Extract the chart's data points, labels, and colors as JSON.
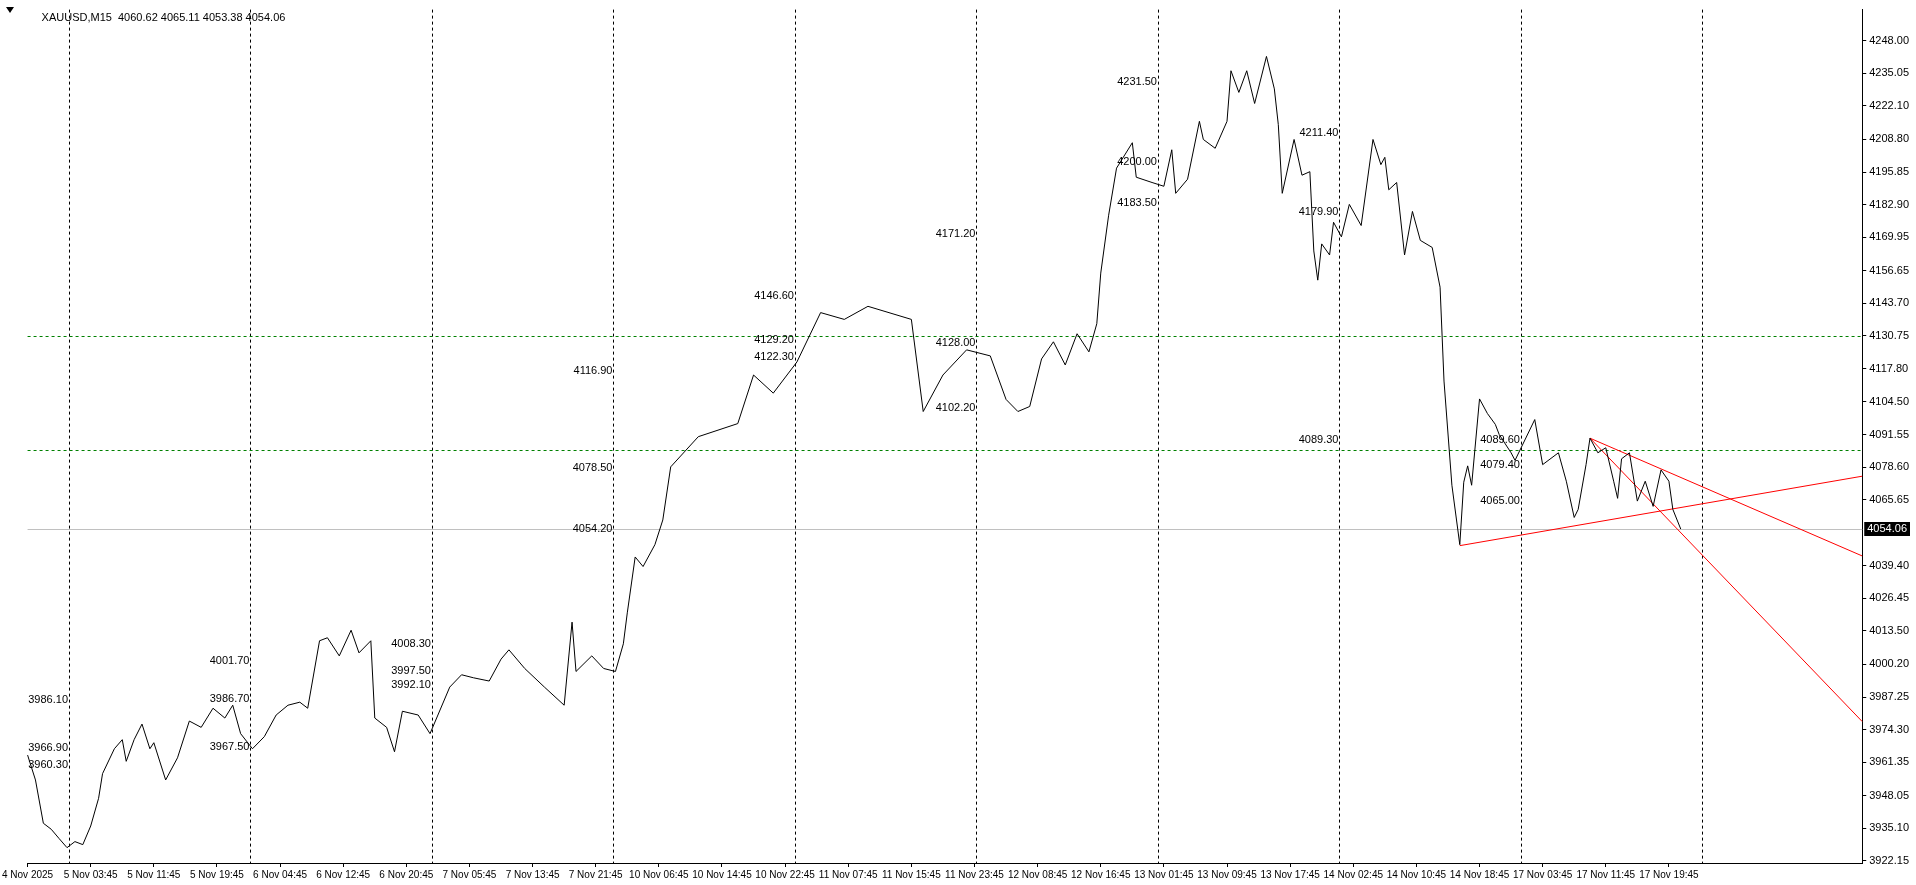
{
  "chart_data": {
    "type": "line",
    "title": "XAUUSD,M15  4060.62 4065.11 4053.38 4054.06",
    "categories": [
      "4 Nov 2025",
      null,
      null,
      null,
      null,
      null,
      null,
      null,
      null,
      null,
      null,
      null,
      null,
      null,
      null,
      null,
      "5 Nov 03:45",
      null,
      null,
      null,
      null,
      null,
      null,
      null,
      null,
      null,
      null,
      null,
      null,
      null,
      null,
      null,
      "5 Nov 11:45",
      null,
      null,
      null,
      null,
      null,
      null,
      null,
      null,
      null,
      null,
      null,
      null,
      null,
      null,
      null,
      "5 Nov 19:45",
      null,
      null,
      null,
      null,
      null,
      null,
      null,
      null,
      null,
      null,
      null,
      null,
      null,
      null,
      null,
      "6 Nov 04:45",
      null,
      null,
      null,
      null,
      null,
      null,
      null,
      null,
      null,
      null,
      null,
      null,
      null,
      null,
      null,
      "6 Nov 12:45",
      null,
      null,
      null,
      null,
      null,
      null,
      null,
      null,
      null,
      null,
      null,
      null,
      null,
      null,
      null,
      "6 Nov 20:45",
      null,
      null,
      null,
      null,
      null,
      null,
      null,
      null,
      null,
      null,
      null,
      null,
      null,
      null,
      null,
      "7 Nov 05:45",
      null,
      null,
      null,
      null,
      null,
      null,
      null,
      null,
      null,
      null,
      null,
      null,
      null,
      null,
      null,
      "7 Nov 13:45",
      null,
      null,
      null,
      null,
      null,
      null,
      null,
      null,
      null,
      null,
      null,
      null,
      null,
      null,
      null,
      "7 Nov 21:45",
      null,
      null,
      null,
      null,
      null,
      null,
      null,
      null,
      null,
      null,
      null,
      null,
      null,
      null,
      null,
      "10 Nov 06:45",
      null,
      null,
      null,
      null,
      null,
      null,
      null,
      null,
      null,
      null,
      null,
      null,
      null,
      null,
      null,
      "10 Nov 14:45",
      null,
      null,
      null,
      null,
      null,
      null,
      null,
      null,
      null,
      null,
      null,
      null,
      null,
      null,
      null,
      "10 Nov 22:45",
      null,
      null,
      null,
      null,
      null,
      null,
      null,
      null,
      null,
      null,
      null,
      null,
      null,
      null,
      null,
      "11 Nov 07:45",
      null,
      null,
      null,
      null,
      null,
      null,
      null,
      null,
      null,
      null,
      null,
      null,
      null,
      null,
      null,
      "11 Nov 15:45",
      null,
      null,
      null,
      null,
      null,
      null,
      null,
      null,
      null,
      null,
      null,
      null,
      null,
      null,
      null,
      "11 Nov 23:45",
      null,
      null,
      null,
      null,
      null,
      null,
      null,
      null,
      null,
      null,
      null,
      null,
      null,
      null,
      null,
      "12 Nov 08:45",
      null,
      null,
      null,
      null,
      null,
      null,
      null,
      null,
      null,
      null,
      null,
      null,
      null,
      null,
      null,
      "12 Nov 16:45",
      null,
      null,
      null,
      null,
      null,
      null,
      null,
      null,
      null,
      null,
      null,
      null,
      null,
      null,
      null,
      "13 Nov 01:45",
      null,
      null,
      null,
      null,
      null,
      null,
      null,
      null,
      null,
      null,
      null,
      null,
      null,
      null,
      null,
      "13 Nov 09:45",
      null,
      null,
      null,
      null,
      null,
      null,
      null,
      null,
      null,
      null,
      null,
      null,
      null,
      null,
      null,
      "13 Nov 17:45",
      null,
      null,
      null,
      null,
      null,
      null,
      null,
      null,
      null,
      null,
      null,
      null,
      null,
      null,
      null,
      "14 Nov 02:45",
      null,
      null,
      null,
      null,
      null,
      null,
      null,
      null,
      null,
      null,
      null,
      null,
      null,
      null,
      null,
      "14 Nov 10:45",
      null,
      null,
      null,
      null,
      null,
      null,
      null,
      null,
      null,
      null,
      null,
      null,
      null,
      null,
      null,
      "14 Nov 18:45",
      null,
      null,
      null,
      null,
      null,
      null,
      null,
      null,
      null,
      null,
      null,
      null,
      null,
      null,
      null,
      "17 Nov 03:45",
      null,
      null,
      null,
      null,
      null,
      null,
      null,
      null,
      null,
      null,
      null,
      null,
      null,
      null,
      null,
      "17 Nov 11:45",
      null,
      null,
      null,
      null,
      null,
      null,
      null,
      null,
      null,
      null,
      null,
      null,
      null,
      null,
      null,
      "17 Nov 19:45",
      null,
      null,
      null,
      null,
      null,
      null,
      null,
      null,
      null,
      null,
      null,
      null,
      null,
      null,
      null,
      null,
      null,
      null,
      null,
      null,
      null,
      null,
      null,
      null,
      null,
      null,
      null,
      null,
      null,
      null,
      null,
      null,
      null,
      null,
      null,
      null,
      null,
      null,
      null,
      null,
      null,
      null,
      null,
      null,
      null,
      null,
      null,
      null,
      null
    ],
    "series": [
      {
        "color": "#000000",
        "values": [
          3964.2,
          null,
          3954.3,
          null,
          3937.1,
          null,
          3934.7,
          null,
          3931,
          null,
          3927.4,
          null,
          3929.8,
          null,
          3928.6,
          null,
          3936,
          null,
          3947,
          3956.8,
          null,
          null,
          3966.7,
          null,
          3970.3,
          3961.7,
          null,
          3970.3,
          null,
          3976.5,
          null,
          3966.7,
          3969.1,
          null,
          null,
          3954.3,
          null,
          null,
          3963.1,
          null,
          null,
          3977.7,
          null,
          null,
          3975.2,
          null,
          null,
          3982.8,
          null,
          null,
          3978.9,
          null,
          3984,
          null,
          3972.7,
          null,
          null,
          3966.7,
          null,
          null,
          3971.5,
          null,
          null,
          3980.1,
          null,
          null,
          3984,
          null,
          null,
          3985.2,
          null,
          3982.8,
          null,
          null,
          4009.6,
          null,
          4010.8,
          null,
          null,
          4003.6,
          null,
          null,
          4013.8,
          null,
          4004.8,
          null,
          null,
          4009.6,
          3978.9,
          null,
          null,
          3975.2,
          null,
          3965.5,
          null,
          3981.6,
          null,
          null,
          null,
          3980.1,
          null,
          null,
          3972.7,
          null,
          3980.1,
          null,
          null,
          3991.2,
          null,
          null,
          3996.1,
          null,
          null,
          3994.9,
          null,
          null,
          null,
          3993.6,
          null,
          null,
          4002.3,
          null,
          4006,
          null,
          null,
          null,
          3998.6,
          null,
          null,
          null,
          null,
          3991.2,
          null,
          null,
          null,
          null,
          3984,
          null,
          4017,
          3997.4,
          null,
          null,
          null,
          4003.6,
          null,
          null,
          3998.6,
          null,
          null,
          3997.4,
          null,
          4008.4,
          4020.7,
          null,
          4042.9,
          null,
          4039.1,
          null,
          null,
          4047.8,
          null,
          4057.6,
          null,
          4078.7,
          null,
          null,
          null,
          null,
          null,
          null,
          4090.7,
          null,
          null,
          null,
          null,
          null,
          null,
          null,
          null,
          null,
          4095.9,
          null,
          null,
          null,
          4115.2,
          null,
          null,
          null,
          null,
          4108,
          null,
          null,
          null,
          null,
          null,
          4120.4,
          null,
          null,
          null,
          null,
          null,
          4140,
          null,
          null,
          null,
          null,
          null,
          4137.3,
          null,
          null,
          null,
          null,
          null,
          4142.5,
          null,
          null,
          null,
          null,
          null,
          null,
          null,
          null,
          null,
          null,
          4137.3,
          null,
          null,
          4100.7,
          null,
          null,
          null,
          null,
          4115.2,
          null,
          null,
          null,
          null,
          null,
          4125.2,
          null,
          null,
          null,
          null,
          null,
          4122.8,
          null,
          null,
          null,
          4105.5,
          null,
          null,
          4100.7,
          null,
          null,
          4102.7,
          null,
          null,
          4121.6,
          null,
          null,
          4128.4,
          null,
          null,
          4119.2,
          null,
          null,
          4131.6,
          null,
          null,
          4124.4,
          null,
          4135.6,
          4155.7,
          null,
          4178.7,
          null,
          4197.4,
          null,
          null,
          null,
          4207.5,
          4193.8,
          null,
          null,
          null,
          4191.7,
          null,
          null,
          4190.2,
          null,
          4204.7,
          4187.4,
          null,
          null,
          4193,
          null,
          null,
          4216,
          4208.8,
          null,
          null,
          4205.3,
          null,
          null,
          4216,
          4236.1,
          null,
          4227.5,
          null,
          4236.1,
          null,
          4223.1,
          null,
          null,
          4241.8,
          null,
          4228.9,
          4214.7,
          4187.4,
          null,
          null,
          4208.8,
          null,
          4194.6,
          null,
          4196,
          4164.5,
          4152.9,
          4167.3,
          null,
          4162.9,
          4175.9,
          null,
          4170.1,
          null,
          4183,
          null,
          null,
          4174.6,
          null,
          null,
          4208.8,
          null,
          4198.8,
          4201.7,
          4188.8,
          null,
          4191.7,
          null,
          4162.9,
          null,
          4180.2,
          null,
          4168.7,
          null,
          null,
          4165.9,
          null,
          4150.1,
          4112.8,
          null,
          4071.4,
          null,
          4047.8,
          4072.6,
          4079.1,
          4071.4,
          null,
          4105.7,
          null,
          4099.9,
          null,
          4095.6,
          4091.5,
          null,
          null,
          4084.3,
          4081.3,
          null,
          null,
          null,
          null,
          4097.5,
          null,
          4079.6,
          null,
          null,
          null,
          4084.3,
          null,
          4073,
          null,
          4058.6,
          4061.8,
          null,
          4079.6,
          4090.1,
          null,
          4084.3,
          null,
          4086.3,
          null,
          4073,
          4066.2,
          4081.9,
          null,
          4084.3,
          null,
          4065.1,
          null,
          4073,
          null,
          4063,
          null,
          4077.5,
          null,
          4073,
          4061.8,
          null,
          4054,
          null,
          null,
          null,
          null,
          null,
          null,
          null,
          null,
          null,
          null,
          null,
          null,
          null,
          null,
          null,
          null,
          null,
          null,
          null,
          null,
          null,
          null,
          null,
          null,
          null,
          null,
          null,
          null,
          null,
          null,
          null,
          null,
          null,
          null,
          null,
          null,
          null,
          null,
          null,
          null,
          null,
          null,
          null,
          null,
          null,
          null
        ]
      },
      {
        "type": "line",
        "color": "#ff0000",
        "values": [
          null,
          null,
          null,
          null,
          null,
          null,
          null,
          null,
          null,
          null,
          null,
          null,
          null,
          null,
          null,
          null,
          null,
          null,
          null,
          null,
          null,
          null,
          null,
          null,
          null,
          null,
          null,
          null,
          null,
          null,
          null,
          null,
          null,
          null,
          null,
          null,
          null,
          null,
          null,
          null,
          null,
          null,
          null,
          null,
          null,
          null,
          null,
          null,
          null,
          null,
          null,
          null,
          null,
          null,
          null,
          null,
          null,
          null,
          null,
          null,
          null,
          null,
          null,
          null,
          null,
          null,
          null,
          null,
          null,
          null,
          null,
          null,
          null,
          null,
          null,
          null,
          null,
          null,
          null,
          null,
          null,
          null,
          null,
          null,
          null,
          null,
          null,
          null,
          null,
          null,
          null,
          null,
          null,
          null,
          null,
          null,
          null,
          null,
          null,
          null,
          null,
          null,
          null,
          null,
          null,
          null,
          null,
          null,
          null,
          null,
          null,
          null,
          null,
          null,
          null,
          null,
          null,
          null,
          null,
          null,
          null,
          null,
          null,
          null,
          null,
          null,
          null,
          null,
          null,
          null,
          null,
          null,
          null,
          null,
          null,
          null,
          null,
          null,
          null,
          null,
          null,
          null,
          null,
          null,
          null,
          null,
          null,
          null,
          null,
          null,
          null,
          null,
          null,
          null,
          null,
          null,
          null,
          null,
          null,
          null,
          null,
          null,
          null,
          null,
          null,
          null,
          null,
          null,
          null,
          null,
          null,
          null,
          null,
          null,
          null,
          null,
          null,
          null,
          null,
          null,
          null,
          null,
          null,
          null,
          null,
          null,
          null,
          null,
          null,
          null,
          null,
          null,
          null,
          null,
          null,
          null,
          null,
          null,
          null,
          null,
          null,
          null,
          null,
          null,
          null,
          null,
          null,
          null,
          null,
          null,
          null,
          null,
          null,
          null,
          null,
          null,
          null,
          null,
          null,
          null,
          null,
          null,
          null,
          null,
          null,
          null,
          null,
          null,
          null,
          null,
          null,
          null,
          null,
          null,
          null,
          null,
          null,
          null,
          null,
          null,
          null,
          null,
          null,
          null,
          null,
          null,
          null,
          null,
          null,
          null,
          null,
          null,
          null,
          null,
          null,
          null,
          null,
          null,
          null,
          null,
          null,
          null,
          null,
          null,
          null,
          null,
          null,
          null,
          null,
          null,
          null,
          null,
          null,
          null,
          null,
          null,
          null,
          null,
          null,
          null,
          null,
          null,
          null,
          null,
          null,
          null,
          null,
          null,
          null,
          null,
          null,
          null,
          null,
          null,
          null,
          null,
          null,
          null,
          null,
          null,
          null,
          null,
          null,
          null,
          null,
          null,
          null,
          null,
          null,
          null,
          null,
          null,
          null,
          null,
          null,
          null,
          null,
          null,
          null,
          null,
          null,
          null,
          null,
          null,
          null,
          null,
          null,
          null,
          null,
          null,
          null,
          null,
          null,
          null,
          null,
          null,
          null,
          null,
          null,
          null,
          null,
          null,
          null,
          null,
          null,
          null,
          null,
          null,
          null,
          null,
          null,
          null,
          null,
          null,
          null,
          null,
          null,
          null,
          null,
          null,
          null,
          null,
          null,
          4047.4,
          null,
          null,
          null,
          null,
          null,
          null,
          null,
          null,
          null,
          null,
          null,
          null,
          null,
          null,
          null,
          null,
          null,
          null,
          null,
          null,
          null,
          null,
          null,
          null,
          null,
          null,
          null,
          null,
          null,
          null,
          null,
          null,
          null,
          null,
          null,
          null,
          null,
          null,
          null,
          null,
          null,
          null,
          null,
          null,
          null,
          null,
          null,
          null,
          null,
          null,
          null,
          null,
          null,
          null,
          null,
          null,
          null,
          null,
          null,
          null,
          null,
          null,
          null,
          null,
          null,
          null,
          null,
          null,
          null,
          null,
          null,
          null,
          null,
          null,
          null,
          null,
          null,
          null,
          null,
          null,
          null,
          null,
          null,
          null,
          null,
          null,
          null,
          null,
          null,
          null,
          null,
          null,
          null,
          null,
          null,
          null,
          null,
          null,
          null,
          null,
          null,
          4075.0
        ]
      },
      {
        "type": "line",
        "color": "#ff0000",
        "values": [
          null,
          null,
          null,
          null,
          null,
          null,
          null,
          null,
          null,
          null,
          null,
          null,
          null,
          null,
          null,
          null,
          null,
          null,
          null,
          null,
          null,
          null,
          null,
          null,
          null,
          null,
          null,
          null,
          null,
          null,
          null,
          null,
          null,
          null,
          null,
          null,
          null,
          null,
          null,
          null,
          null,
          null,
          null,
          null,
          null,
          null,
          null,
          null,
          null,
          null,
          null,
          null,
          null,
          null,
          null,
          null,
          null,
          null,
          null,
          null,
          null,
          null,
          null,
          null,
          null,
          null,
          null,
          null,
          null,
          null,
          null,
          null,
          null,
          null,
          null,
          null,
          null,
          null,
          null,
          null,
          null,
          null,
          null,
          null,
          null,
          null,
          null,
          null,
          null,
          null,
          null,
          null,
          null,
          null,
          null,
          null,
          null,
          null,
          null,
          null,
          null,
          null,
          null,
          null,
          null,
          null,
          null,
          null,
          null,
          null,
          null,
          null,
          null,
          null,
          null,
          null,
          null,
          null,
          null,
          null,
          null,
          null,
          null,
          null,
          null,
          null,
          null,
          null,
          null,
          null,
          null,
          null,
          null,
          null,
          null,
          null,
          null,
          null,
          null,
          null,
          null,
          null,
          null,
          null,
          null,
          null,
          null,
          null,
          null,
          null,
          null,
          null,
          null,
          null,
          null,
          null,
          null,
          null,
          null,
          null,
          null,
          null,
          null,
          null,
          null,
          null,
          null,
          null,
          null,
          null,
          null,
          null,
          null,
          null,
          null,
          null,
          null,
          null,
          null,
          null,
          null,
          null,
          null,
          null,
          null,
          null,
          null,
          null,
          null,
          null,
          null,
          null,
          null,
          null,
          null,
          null,
          null,
          null,
          null,
          null,
          null,
          null,
          null,
          null,
          null,
          null,
          null,
          null,
          null,
          null,
          null,
          null,
          null,
          null,
          null,
          null,
          null,
          null,
          null,
          null,
          null,
          null,
          null,
          null,
          null,
          null,
          null,
          null,
          null,
          null,
          null,
          null,
          null,
          null,
          null,
          null,
          null,
          null,
          null,
          null,
          null,
          null,
          null,
          null,
          null,
          null,
          null,
          null,
          null,
          null,
          null,
          null,
          null,
          null,
          null,
          null,
          null,
          null,
          null,
          null,
          null,
          null,
          null,
          null,
          null,
          null,
          null,
          null,
          null,
          null,
          null,
          null,
          null,
          null,
          null,
          null,
          null,
          null,
          null,
          null,
          null,
          null,
          null,
          null,
          null,
          null,
          null,
          null,
          null,
          null,
          null,
          null,
          null,
          null,
          null,
          null,
          null,
          null,
          null,
          null,
          null,
          null,
          null,
          null,
          null,
          null,
          null,
          null,
          null,
          null,
          null,
          null,
          null,
          null,
          null,
          null,
          null,
          null,
          null,
          null,
          null,
          null,
          null,
          null,
          null,
          null,
          null,
          null,
          null,
          null,
          null,
          null,
          null,
          null,
          null,
          null,
          null,
          null,
          null,
          null,
          null,
          null,
          null,
          null,
          null,
          null,
          null,
          null,
          null,
          null,
          null,
          null,
          null,
          null,
          null,
          null,
          null,
          null,
          null,
          null,
          null,
          null,
          null,
          null,
          null,
          null,
          null,
          null,
          null,
          null,
          null,
          null,
          null,
          null,
          null,
          null,
          null,
          null,
          null,
          null,
          null,
          null,
          null,
          null,
          null,
          null,
          null,
          null,
          null,
          null,
          null,
          null,
          null,
          null,
          null,
          null,
          4090.1,
          null,
          null,
          null,
          null,
          null,
          null,
          null,
          null,
          null,
          null,
          null,
          null,
          null,
          null,
          null,
          null,
          null,
          null,
          null,
          null,
          null,
          null,
          null,
          null,
          null,
          null,
          null,
          null,
          null,
          null,
          null,
          null,
          null,
          null,
          null,
          null,
          null,
          null,
          null,
          null,
          null,
          null,
          null,
          null,
          null,
          null,
          null,
          null,
          null,
          null,
          null,
          null,
          null,
          null,
          null,
          null,
          null,
          null,
          null,
          null,
          null,
          null,
          null,
          null,
          null,
          null,
          null,
          null,
          4043.3
        ]
      },
      {
        "type": "line",
        "color": "#ff0000",
        "values": [
          null,
          null,
          null,
          null,
          null,
          null,
          null,
          null,
          null,
          null,
          null,
          null,
          null,
          null,
          null,
          null,
          null,
          null,
          null,
          null,
          null,
          null,
          null,
          null,
          null,
          null,
          null,
          null,
          null,
          null,
          null,
          null,
          null,
          null,
          null,
          null,
          null,
          null,
          null,
          null,
          null,
          null,
          null,
          null,
          null,
          null,
          null,
          null,
          null,
          null,
          null,
          null,
          null,
          null,
          null,
          null,
          null,
          null,
          null,
          null,
          null,
          null,
          null,
          null,
          null,
          null,
          null,
          null,
          null,
          null,
          null,
          null,
          null,
          null,
          null,
          null,
          null,
          null,
          null,
          null,
          null,
          null,
          null,
          null,
          null,
          null,
          null,
          null,
          null,
          null,
          null,
          null,
          null,
          null,
          null,
          null,
          null,
          null,
          null,
          null,
          null,
          null,
          null,
          null,
          null,
          null,
          null,
          null,
          null,
          null,
          null,
          null,
          null,
          null,
          null,
          null,
          null,
          null,
          null,
          null,
          null,
          null,
          null,
          null,
          null,
          null,
          null,
          null,
          null,
          null,
          null,
          null,
          null,
          null,
          null,
          null,
          null,
          null,
          null,
          null,
          null,
          null,
          null,
          null,
          null,
          null,
          null,
          null,
          null,
          null,
          null,
          null,
          null,
          null,
          null,
          null,
          null,
          null,
          null,
          null,
          null,
          null,
          null,
          null,
          null,
          null,
          null,
          null,
          null,
          null,
          null,
          null,
          null,
          null,
          null,
          null,
          null,
          null,
          null,
          null,
          null,
          null,
          null,
          null,
          null,
          null,
          null,
          null,
          null,
          null,
          null,
          null,
          null,
          null,
          null,
          null,
          null,
          null,
          null,
          null,
          null,
          null,
          null,
          null,
          null,
          null,
          null,
          null,
          null,
          null,
          null,
          null,
          null,
          null,
          null,
          null,
          null,
          null,
          null,
          null,
          null,
          null,
          null,
          null,
          null,
          null,
          null,
          null,
          null,
          null,
          null,
          null,
          null,
          null,
          null,
          null,
          null,
          null,
          null,
          null,
          null,
          null,
          null,
          null,
          null,
          null,
          null,
          null,
          null,
          null,
          null,
          null,
          null,
          null,
          null,
          null,
          null,
          null,
          null,
          null,
          null,
          null,
          null,
          null,
          null,
          null,
          null,
          null,
          null,
          null,
          null,
          null,
          null,
          null,
          null,
          null,
          null,
          null,
          null,
          null,
          null,
          null,
          null,
          null,
          null,
          null,
          null,
          null,
          null,
          null,
          null,
          null,
          null,
          null,
          null,
          null,
          null,
          null,
          null,
          null,
          null,
          null,
          null,
          null,
          null,
          null,
          null,
          null,
          null,
          null,
          null,
          null,
          null,
          null,
          null,
          null,
          null,
          null,
          null,
          null,
          null,
          null,
          null,
          null,
          null,
          null,
          null,
          null,
          null,
          null,
          null,
          null,
          null,
          null,
          null,
          null,
          null,
          null,
          null,
          null,
          null,
          null,
          null,
          null,
          null,
          null,
          null,
          null,
          null,
          null,
          null,
          null,
          null,
          null,
          null,
          null,
          null,
          null,
          null,
          null,
          null,
          null,
          null,
          null,
          null,
          null,
          null,
          null,
          null,
          null,
          null,
          null,
          null,
          null,
          null,
          null,
          null,
          null,
          null,
          null,
          null,
          null,
          null,
          null,
          null,
          null,
          null,
          null,
          null,
          null,
          null,
          null,
          null,
          null,
          null,
          null,
          4090.1,
          null,
          null,
          null,
          null,
          null,
          null,
          null,
          null,
          null,
          null,
          null,
          null,
          null,
          null,
          null,
          null,
          null,
          null,
          null,
          null,
          null,
          null,
          null,
          null,
          null,
          null,
          null,
          null,
          null,
          null,
          null,
          null,
          null,
          null,
          null,
          null,
          null,
          null,
          null,
          null,
          null,
          null,
          null,
          null,
          null,
          null,
          null,
          null,
          null,
          null,
          null,
          null,
          null,
          null,
          null,
          null,
          null,
          null,
          null,
          null,
          null,
          null,
          null,
          null,
          null,
          null,
          null,
          null,
          3977.5
        ]
      }
    ],
    "ylim": [
      3921.3,
      4260.4
    ],
    "yticks": [
      {
        "value": 3922.15,
        "label": "3922.15"
      },
      {
        "value": 3935.1,
        "label": "3935.10"
      },
      {
        "value": 3948.05,
        "label": "3948.05"
      },
      {
        "value": 3961.35,
        "label": "3961.35"
      },
      {
        "value": 3974.3,
        "label": "3974.30"
      },
      {
        "value": 3987.25,
        "label": "3987.25"
      },
      {
        "value": 4000.2,
        "label": "4000.20"
      },
      {
        "value": 4013.5,
        "label": "4013.50"
      },
      {
        "value": 4026.45,
        "label": "4026.45"
      },
      {
        "value": 4039.4,
        "label": "4039.40"
      },
      {
        "value": 4065.65,
        "label": "4065.65"
      },
      {
        "value": 4078.6,
        "label": "4078.60"
      },
      {
        "value": 4091.55,
        "label": "4091.55"
      },
      {
        "value": 4104.5,
        "label": "4104.50"
      },
      {
        "value": 4117.8,
        "label": "4117.80"
      },
      {
        "value": 4130.75,
        "label": "4130.75"
      },
      {
        "value": 4143.7,
        "label": "4143.70"
      },
      {
        "value": 4156.65,
        "label": "4156.65"
      },
      {
        "value": 4169.95,
        "label": "4169.95"
      },
      {
        "value": 4182.9,
        "label": "4182.90"
      },
      {
        "value": 4195.85,
        "label": "4195.85"
      },
      {
        "value": 4208.8,
        "label": "4208.80"
      },
      {
        "value": 4222.1,
        "label": "4222.10"
      },
      {
        "value": 4235.05,
        "label": "4235.05"
      },
      {
        "value": 4248,
        "label": "4248.00"
      }
    ],
    "ref_lines": [
      {
        "axis": "y",
        "value": 4130.75,
        "color": "#008000",
        "line_style": "dashed"
      },
      {
        "axis": "y",
        "value": 4085.5,
        "color": "#008000",
        "line_style": "dashed"
      },
      {
        "axis": "y",
        "value": 4054.06,
        "label": "4054.06",
        "color": "#c0c0c0",
        "line_style": "solid"
      }
    ],
    "annotations": [
      "3986.10",
      "3966.90",
      "3960.30",
      "4001.70",
      "3986.70",
      "3967.50",
      "4008.30",
      "3997.50",
      "3992.10",
      "4116.90",
      "4078.50",
      "4054.20",
      "4146.60",
      "4129.20",
      "4122.30",
      "4171.20",
      "4128.00",
      "4102.20",
      "4231.50",
      "4200.00",
      "4183.50",
      "4211.40",
      "4179.90",
      "4089.30",
      "4089.60",
      "4079.40",
      "4065.00"
    ],
    "grid": false,
    "legend": false,
    "marker": "none",
    "line_style": "solid"
  }
}
